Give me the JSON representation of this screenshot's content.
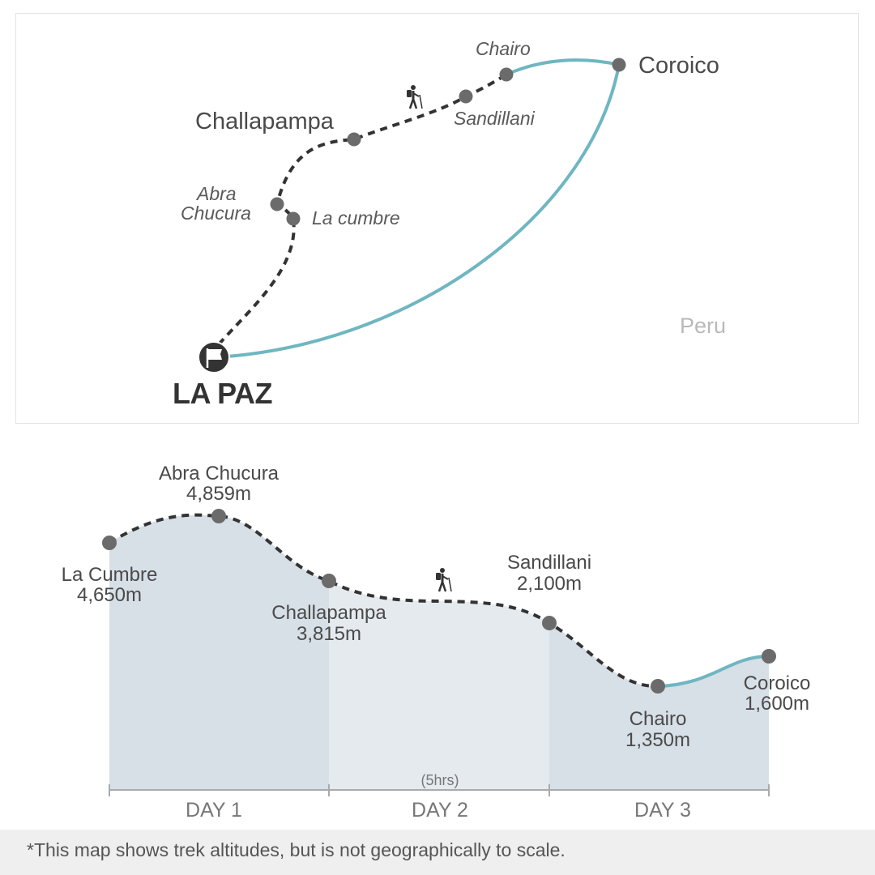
{
  "route_map": {
    "start": "LA PAZ",
    "end": "Coroico",
    "country": "Peru",
    "stops": [
      {
        "name": "Chairo",
        "style": "minor"
      },
      {
        "name": "Coroico",
        "style": "major"
      },
      {
        "name": "Sandillani",
        "style": "minor"
      },
      {
        "name": "Challapampa",
        "style": "major"
      },
      {
        "name": "Abra",
        "style": "minor"
      },
      {
        "name": "Chucura",
        "style": "minor"
      },
      {
        "name": "La cumbre",
        "style": "minor"
      }
    ],
    "colors": {
      "trek_path": "#333333",
      "road": "#6fb6c1",
      "marker": "#6b6b6b"
    },
    "icons": {
      "start": "flag-icon",
      "hiker": "hiker-icon"
    }
  },
  "elevation_profile": {
    "stops": [
      {
        "name": "La Cumbre",
        "altitude": "4,650m",
        "altitude_m": 4650
      },
      {
        "name": "Abra Chucura",
        "altitude": "4,859m",
        "altitude_m": 4859
      },
      {
        "name": "Challapampa",
        "altitude": "3,815m",
        "altitude_m": 3815
      },
      {
        "name": "Sandillani",
        "altitude": "2,100m",
        "altitude_m": 2100
      },
      {
        "name": "Chairo",
        "altitude": "1,350m",
        "altitude_m": 1350
      },
      {
        "name": "Coroico",
        "altitude": "1,600m",
        "altitude_m": 1600
      }
    ],
    "days": [
      "DAY 1",
      "DAY 2",
      "DAY 3"
    ],
    "day2_duration": "(5hrs)",
    "colors": {
      "day_fill_dark": "#d7dfe7",
      "day_fill_light": "#e5eaee",
      "axis": "#aaaaaa"
    }
  },
  "footnote": "*This map shows trek altitudes, but is not geographically to scale."
}
